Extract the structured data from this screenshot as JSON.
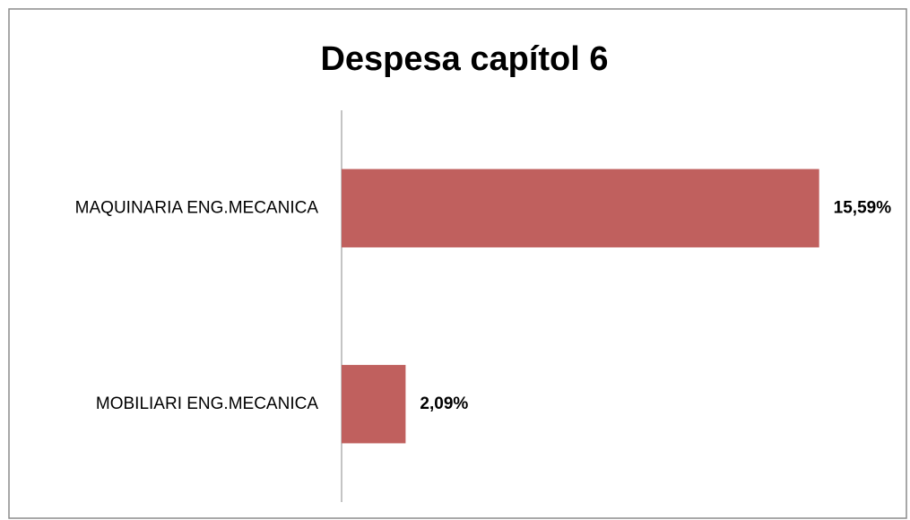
{
  "chart_data": {
    "type": "hbar",
    "title": "Despesa capítol 6",
    "categories": [
      "MAQUINARIA ENG.MECANICA",
      "MOBILIARI ENG.MECANICA"
    ],
    "values": [
      15.59,
      2.09
    ],
    "value_labels": [
      "15,59%",
      "2,09%"
    ],
    "color": "#c0605e",
    "xlim": [
      0,
      18
    ]
  }
}
